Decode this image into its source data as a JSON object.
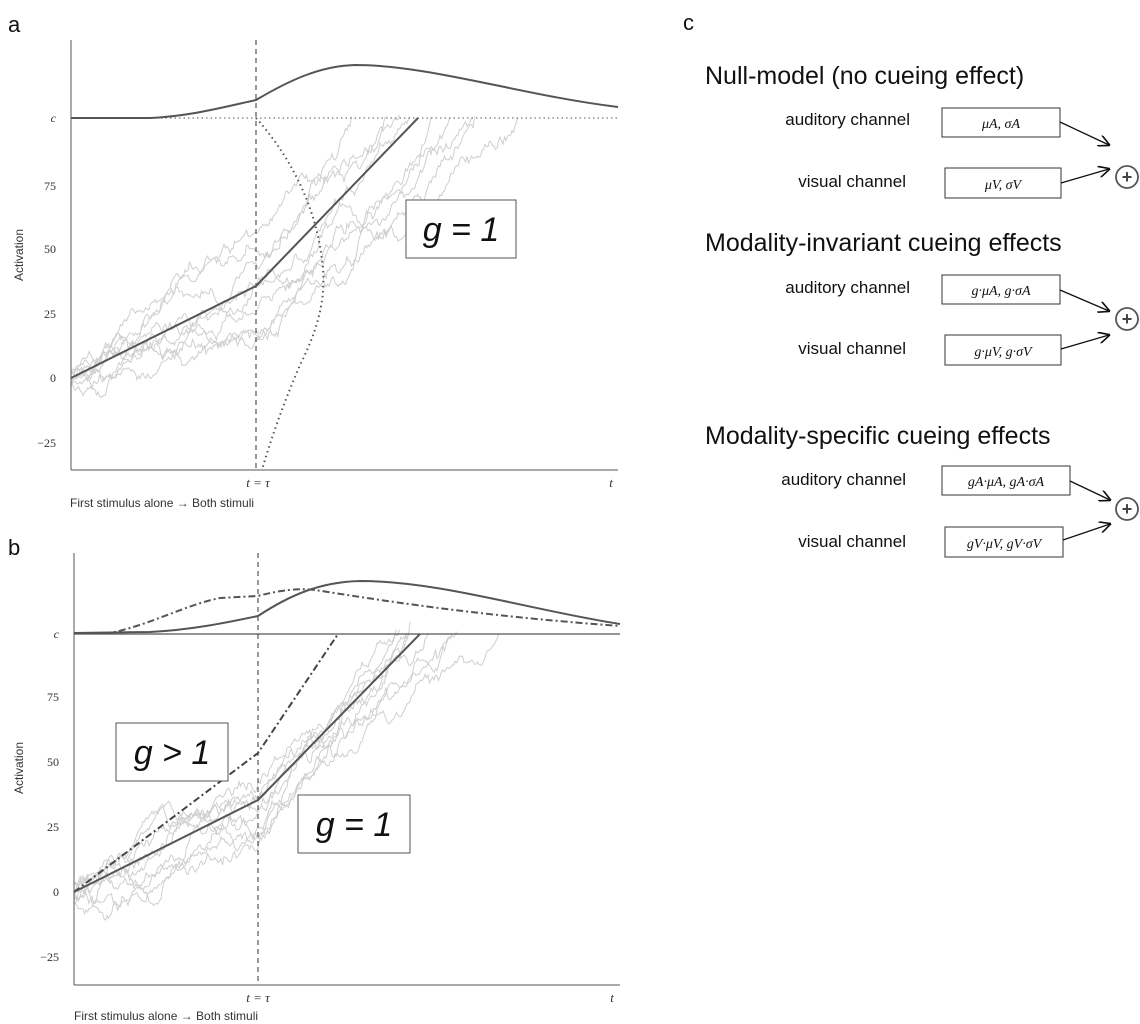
{
  "panels": {
    "a": {
      "letter": "a",
      "ylabel": "Activation",
      "xcaption": "First stimulus alone → Both stimuli",
      "yticks": [
        "c",
        "75",
        "50",
        "25",
        "0",
        "−25"
      ],
      "xtick_tau": "t = τ",
      "xtick_t": "t",
      "gbox": "g = 1"
    },
    "b": {
      "letter": "b",
      "ylabel": "Activation",
      "xcaption": "First stimulus alone → Both stimuli",
      "yticks": [
        "c",
        "75",
        "50",
        "25",
        "0",
        "−25"
      ],
      "xtick_tau": "t = τ",
      "xtick_t": "t",
      "gbox_upper": "g > 1",
      "gbox_lower": "g = 1"
    },
    "c": {
      "letter": "c",
      "sections": [
        {
          "title": "Null-model (no cueing effect)",
          "aud_label": "auditory channel",
          "vis_label": "visual channel",
          "aud_param": "μA, σA",
          "vis_param": "μV, σV"
        },
        {
          "title": "Modality-invariant cueing effects",
          "aud_label": "auditory channel",
          "vis_label": "visual channel",
          "aud_param": "g·μA, g·σA",
          "vis_param": "g·μV, g·σV"
        },
        {
          "title": "Modality-specific cueing effects",
          "aud_label": "auditory channel",
          "vis_label": "visual channel",
          "aud_param": "gA·μA, gA·σA",
          "vis_param": "gV·μV, gV·σV"
        }
      ],
      "combine_symbol": "+"
    }
  }
}
